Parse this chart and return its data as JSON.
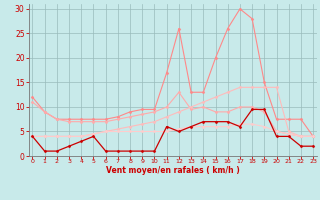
{
  "x": [
    0,
    1,
    2,
    3,
    4,
    5,
    6,
    7,
    8,
    9,
    10,
    11,
    12,
    13,
    14,
    15,
    16,
    17,
    18,
    19,
    20,
    21,
    22,
    23
  ],
  "series": [
    {
      "name": "line1_steep",
      "color": "#ff8888",
      "linewidth": 0.8,
      "marker": "D",
      "markersize": 1.5,
      "y": [
        12,
        9,
        7.5,
        7.5,
        7.5,
        7.5,
        7.5,
        8,
        9,
        9.5,
        9.5,
        17,
        26,
        13,
        13,
        20,
        26,
        30,
        28,
        15,
        7.5,
        7.5,
        7.5,
        4
      ]
    },
    {
      "name": "line2_medium",
      "color": "#ffaaaa",
      "linewidth": 0.8,
      "marker": "D",
      "markersize": 1.5,
      "y": [
        11,
        9,
        7.5,
        7,
        7,
        7,
        7,
        7.5,
        8,
        8.5,
        9,
        10,
        13,
        9.5,
        10,
        9,
        9,
        10,
        10,
        9,
        5,
        4.5,
        4,
        4
      ]
    },
    {
      "name": "line3_gradual",
      "color": "#ffbbbb",
      "linewidth": 0.8,
      "marker": "D",
      "markersize": 1.5,
      "y": [
        4,
        4,
        4,
        4,
        4,
        4.5,
        5,
        5.5,
        6,
        6.5,
        7,
        8,
        9,
        10,
        11,
        12,
        13,
        14,
        14,
        14,
        14,
        5,
        4,
        4
      ]
    },
    {
      "name": "line4_flat",
      "color": "#ffcccc",
      "linewidth": 0.8,
      "marker": "D",
      "markersize": 1.5,
      "y": [
        4,
        4,
        4,
        4,
        4,
        4.5,
        5,
        5,
        5,
        5,
        5,
        5,
        5.5,
        6,
        6,
        6,
        6,
        6.5,
        6.5,
        6,
        5,
        4.5,
        4,
        4
      ]
    },
    {
      "name": "vent_moyen",
      "color": "#cc0000",
      "linewidth": 0.9,
      "marker": "D",
      "markersize": 1.5,
      "y": [
        4,
        1,
        1,
        2,
        3,
        4,
        1,
        1,
        1,
        1,
        1,
        6,
        5,
        6,
        7,
        7,
        7,
        6,
        9.5,
        9.5,
        4,
        4,
        2,
        2
      ]
    }
  ],
  "xlim": [
    -0.3,
    23.3
  ],
  "ylim": [
    0,
    31
  ],
  "yticks": [
    0,
    5,
    10,
    15,
    20,
    25,
    30
  ],
  "xticks": [
    0,
    1,
    2,
    3,
    4,
    5,
    6,
    7,
    8,
    9,
    10,
    11,
    12,
    13,
    14,
    15,
    16,
    17,
    18,
    19,
    20,
    21,
    22,
    23
  ],
  "xlabel": "Vent moyen/en rafales ( km/h )",
  "bg_color": "#c8eaea",
  "grid_color": "#99bbbb",
  "tick_color": "#cc0000",
  "label_color": "#cc0000"
}
